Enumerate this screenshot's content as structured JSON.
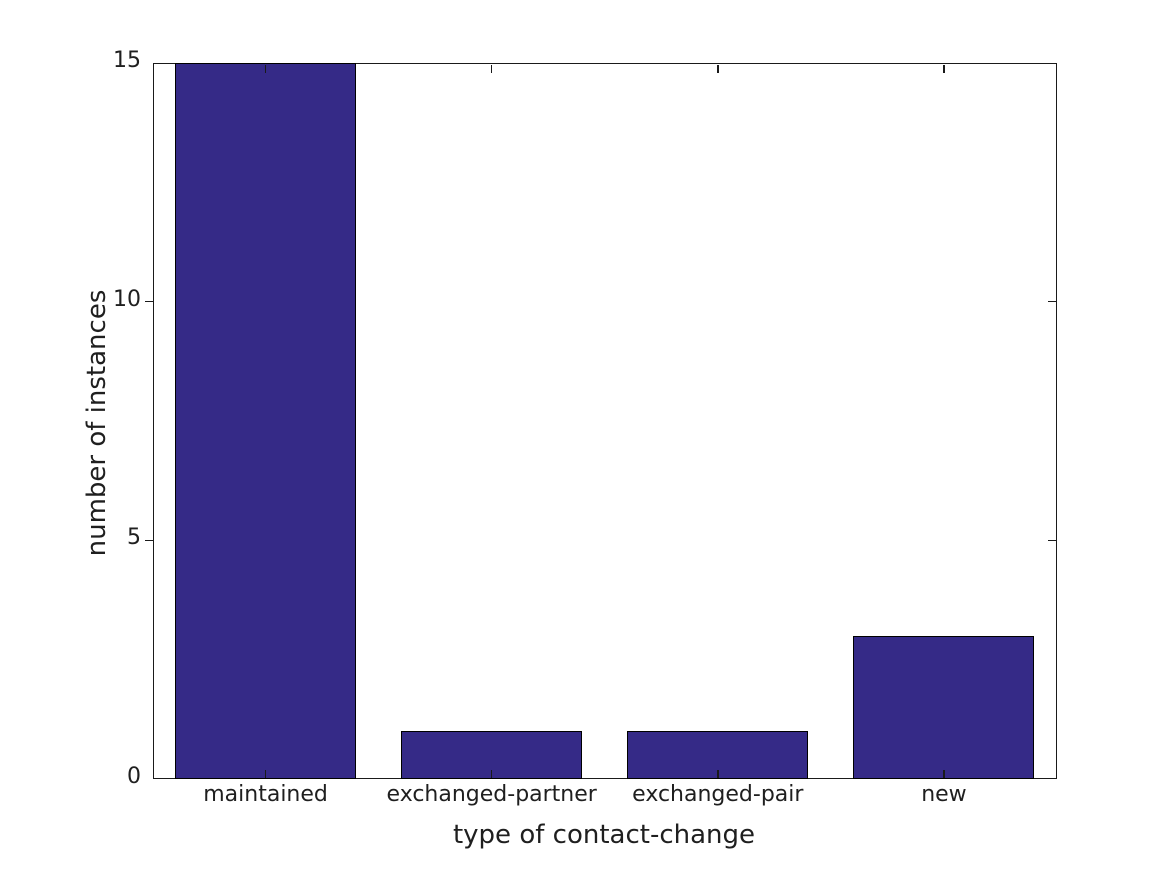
{
  "figure": {
    "background": "#ffffff"
  },
  "chart_data": {
    "type": "bar",
    "title": "",
    "categories": [
      "maintained",
      "exchanged-partner",
      "exchanged-pair",
      "new"
    ],
    "values": [
      15,
      1,
      1,
      3
    ],
    "xlabel": "type of contact-change",
    "ylabel": "number of instances",
    "ylim": [
      0,
      15
    ],
    "yticks": [
      0,
      5,
      10,
      15
    ],
    "bar_width_fraction": 0.8,
    "grid": false,
    "legend": null,
    "box": true,
    "colors": {
      "bar_fill": "#352a87",
      "bar_edge": "#000000",
      "axis": "#1a1a1a",
      "text": "#1f1f1f"
    }
  }
}
